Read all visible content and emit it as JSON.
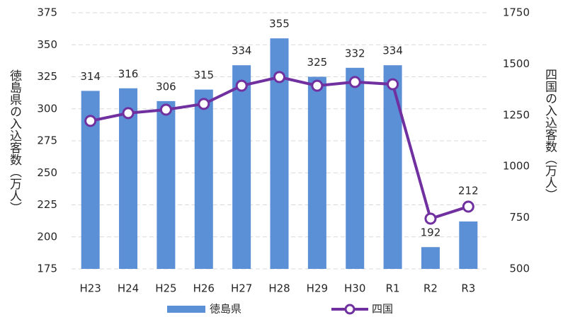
{
  "chart_data": {
    "type": "bar_line",
    "y_label": "徳島県の入込客数（万人）",
    "y2_label": "四国の入込客数（万人）",
    "categories": [
      "H23",
      "H24",
      "H25",
      "H26",
      "H27",
      "H28",
      "H29",
      "H30",
      "R1",
      "R2",
      "R3"
    ],
    "series": [
      {
        "name": "徳島県",
        "type": "bar",
        "color": "#5b8fd6",
        "values": [
          314,
          316,
          306,
          315,
          334,
          355,
          325,
          332,
          334,
          192,
          212
        ]
      },
      {
        "name": "四国",
        "type": "line",
        "axis": "y2",
        "color": "#7030a0",
        "values": [
          1222,
          1260,
          1277,
          1305,
          1394,
          1436,
          1394,
          1412,
          1401,
          745,
          804
        ]
      }
    ],
    "ylim": [
      175,
      375
    ],
    "yticks": [
      175,
      200,
      225,
      250,
      275,
      300,
      325,
      350,
      375
    ],
    "y2lim": [
      500,
      1750
    ],
    "y2ticks": [
      500,
      750,
      1000,
      1250,
      1500,
      1750
    ],
    "grid": true,
    "legend": "bottom"
  }
}
